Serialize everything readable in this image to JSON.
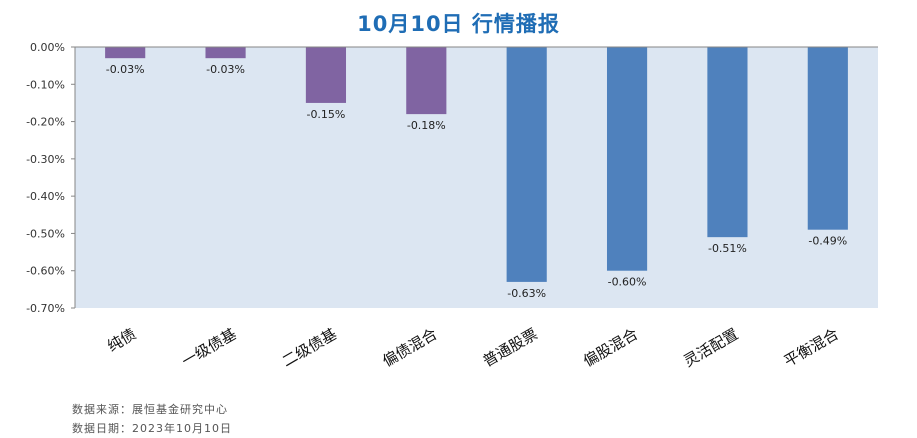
{
  "chart_data": {
    "type": "bar",
    "title": "10月10日  行情播报",
    "categories": [
      "纯债",
      "一级债基",
      "二级债基",
      "偏债混合",
      "普通股票",
      "偏股混合",
      "灵活配置",
      "平衡混合"
    ],
    "values": [
      -0.03,
      -0.03,
      -0.15,
      -0.18,
      -0.63,
      -0.6,
      -0.51,
      -0.49
    ],
    "value_labels": [
      "-0.03%",
      "-0.03%",
      "-0.15%",
      "-0.18%",
      "-0.63%",
      "-0.60%",
      "-0.51%",
      "-0.49%"
    ],
    "bar_colors": [
      "#8064a2",
      "#8064a2",
      "#8064a2",
      "#8064a2",
      "#4f81bd",
      "#4f81bd",
      "#4f81bd",
      "#4f81bd"
    ],
    "ylim": [
      -0.7,
      0.0
    ],
    "yticks": [
      0.0,
      -0.1,
      -0.2,
      -0.3,
      -0.4,
      -0.5,
      -0.6,
      -0.7
    ],
    "ytick_labels": [
      "0.00%",
      "-0.10%",
      "-0.20%",
      "-0.30%",
      "-0.40%",
      "-0.50%",
      "-0.60%",
      "-0.70%"
    ],
    "xlabel": "",
    "ylabel": "",
    "grid": false,
    "plot_background": "#dce6f2",
    "title_color": "#1f6db5"
  },
  "footer": {
    "source": "数据来源：展恒基金研究中心",
    "date": "数据日期：2023年10月10日"
  }
}
